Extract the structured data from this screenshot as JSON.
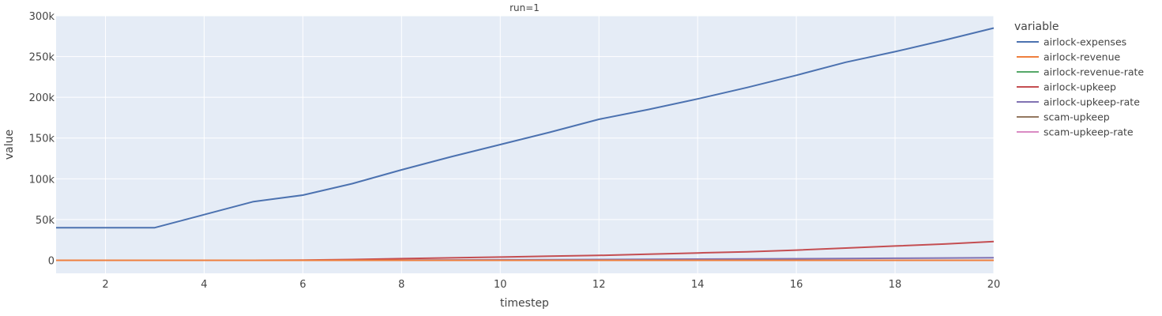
{
  "chart_data": {
    "type": "line",
    "facet_title": "run=1",
    "xlabel": "timestep",
    "ylabel": "value",
    "xlim": [
      1,
      20
    ],
    "ylim": [
      -16000,
      300000
    ],
    "x_ticks": [
      2,
      4,
      6,
      8,
      10,
      12,
      14,
      16,
      18,
      20
    ],
    "x_tick_labels": [
      "2",
      "4",
      "6",
      "8",
      "10",
      "12",
      "14",
      "16",
      "18",
      "20"
    ],
    "y_ticks": [
      0,
      50000,
      100000,
      150000,
      200000,
      250000,
      300000
    ],
    "y_tick_labels": [
      "0",
      "50k",
      "100k",
      "150k",
      "200k",
      "250k",
      "300k"
    ],
    "grid": true,
    "plot_background": "#e5ecf6",
    "grid_color": "#ffffff",
    "legend": {
      "title": "variable",
      "placement": "right"
    },
    "x": [
      1,
      2,
      3,
      4,
      5,
      6,
      7,
      8,
      9,
      10,
      11,
      12,
      13,
      14,
      15,
      16,
      17,
      18,
      19,
      20
    ],
    "series": [
      {
        "name": "airlock-expenses",
        "color": "#4c72b0",
        "values": [
          40000,
          40000,
          40000,
          56000,
          72000,
          80000,
          94000,
          111000,
          127000,
          142000,
          157000,
          173000,
          185000,
          198000,
          212000,
          227000,
          243000,
          256000,
          270000,
          285000
        ]
      },
      {
        "name": "airlock-revenue",
        "color": "#ef7f3e",
        "values": [
          0,
          0,
          0,
          0,
          0,
          0,
          0,
          0,
          0,
          0,
          0,
          0,
          0,
          0,
          0,
          0,
          0,
          0,
          0,
          0
        ]
      },
      {
        "name": "airlock-revenue-rate",
        "color": "#55a868",
        "values": [
          0,
          0,
          0,
          0,
          0,
          0,
          0,
          0,
          0,
          0,
          0,
          0,
          0,
          0,
          0,
          0,
          0,
          0,
          0,
          0
        ]
      },
      {
        "name": "airlock-upkeep",
        "color": "#c44e52",
        "values": [
          0,
          0,
          0,
          0,
          0,
          200,
          1000,
          2000,
          3000,
          4000,
          5000,
          6000,
          7500,
          9000,
          10500,
          12500,
          15000,
          17500,
          20000,
          23000
        ]
      },
      {
        "name": "airlock-upkeep-rate",
        "color": "#8172b2",
        "values": [
          0,
          0,
          0,
          0,
          0,
          0,
          0,
          200,
          400,
          600,
          800,
          1000,
          1200,
          1400,
          1600,
          1900,
          2200,
          2500,
          2800,
          3200
        ]
      },
      {
        "name": "scam-upkeep",
        "color": "#937860",
        "values": [
          0,
          0,
          0,
          0,
          0,
          0,
          0,
          0,
          0,
          0,
          0,
          0,
          0,
          0,
          0,
          0,
          0,
          0,
          0,
          0
        ]
      },
      {
        "name": "scam-upkeep-rate",
        "color": "#da8bc3",
        "values": [
          0,
          0,
          0,
          0,
          0,
          0,
          0,
          0,
          0,
          0,
          0,
          0,
          0,
          0,
          0,
          0,
          0,
          0,
          0,
          0
        ]
      }
    ]
  }
}
